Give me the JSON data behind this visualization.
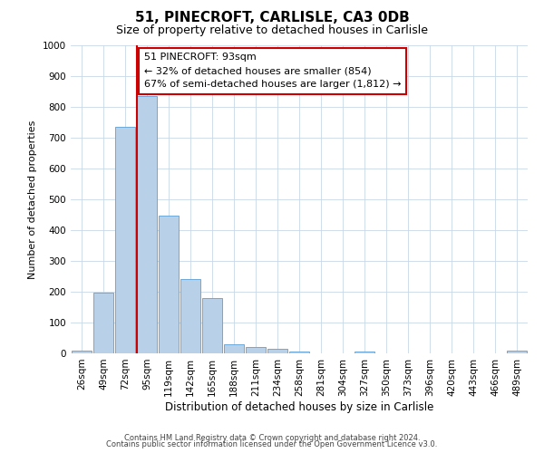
{
  "title": "51, PINECROFT, CARLISLE, CA3 0DB",
  "subtitle": "Size of property relative to detached houses in Carlisle",
  "xlabel": "Distribution of detached houses by size in Carlisle",
  "ylabel": "Number of detached properties",
  "footnote1": "Contains HM Land Registry data © Crown copyright and database right 2024.",
  "footnote2": "Contains public sector information licensed under the Open Government Licence v3.0.",
  "bar_labels": [
    "26sqm",
    "49sqm",
    "72sqm",
    "95sqm",
    "119sqm",
    "142sqm",
    "165sqm",
    "188sqm",
    "211sqm",
    "234sqm",
    "258sqm",
    "281sqm",
    "304sqm",
    "327sqm",
    "350sqm",
    "373sqm",
    "396sqm",
    "420sqm",
    "443sqm",
    "466sqm",
    "489sqm"
  ],
  "bar_values": [
    10,
    197,
    735,
    835,
    448,
    240,
    178,
    30,
    20,
    15,
    5,
    0,
    0,
    5,
    0,
    0,
    0,
    0,
    0,
    0,
    10
  ],
  "bar_color": "#b8d0e8",
  "bar_edge_color": "#5a9fd4",
  "ylim": [
    0,
    1000
  ],
  "yticks": [
    0,
    100,
    200,
    300,
    400,
    500,
    600,
    700,
    800,
    900,
    1000
  ],
  "annotation_title": "51 PINECROFT: 93sqm",
  "annotation_line1": "← 32% of detached houses are smaller (854)",
  "annotation_line2": "67% of semi-detached houses are larger (1,812) →",
  "annotation_box_color": "#cc0000",
  "background_color": "#ffffff",
  "grid_color": "#c8d8e8"
}
